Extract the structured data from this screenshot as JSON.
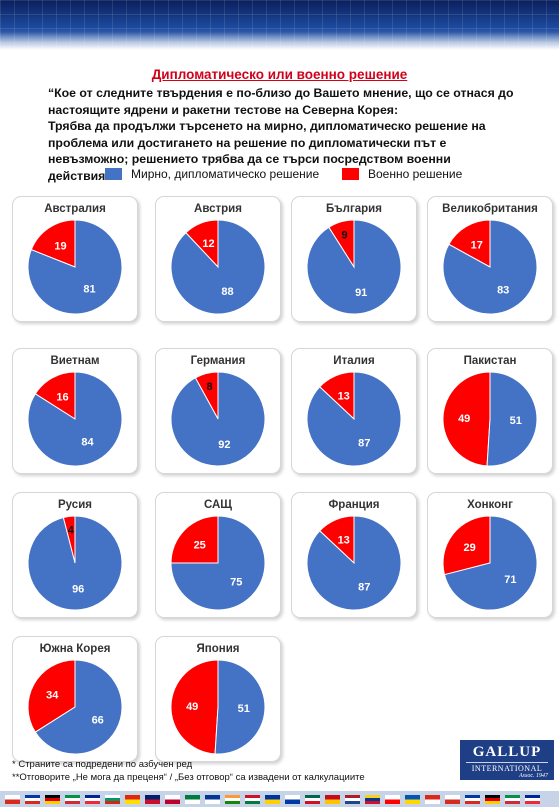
{
  "title": "Дипломатическо или военно решение",
  "question": [
    "“Кое от следните твърдения е по-близо до Вашето мнение, що се отнася до настоящите ядрени и ракетни тестове на Северна Корея:",
    "Трябва да продължи търсенето на мирно, дипломатическо решение на проблема или достигането на решение по дипломатически път е невъзможно; решението трябва да се търси посредством военни действия?”"
  ],
  "legend": [
    {
      "label": "Мирно, дипломатическо решение",
      "color": "#4472c4"
    },
    {
      "label": "Военно решение",
      "color": "#ff0000"
    }
  ],
  "chart_data": {
    "type": "pie",
    "series_names": [
      "Мирно, дипломатическо решение",
      "Военно решение"
    ],
    "colors": [
      "#4472c4",
      "#ff0000"
    ],
    "pies": [
      {
        "country": "Австралия",
        "values": [
          81,
          19
        ]
      },
      {
        "country": "Австрия",
        "values": [
          88,
          12
        ]
      },
      {
        "country": "България",
        "values": [
          91,
          9
        ]
      },
      {
        "country": "Великобритания",
        "values": [
          83,
          17
        ]
      },
      {
        "country": "Виетнам",
        "values": [
          84,
          16
        ]
      },
      {
        "country": "Германия",
        "values": [
          92,
          8
        ]
      },
      {
        "country": "Италия",
        "values": [
          87,
          13
        ]
      },
      {
        "country": "Пакистан",
        "values": [
          51,
          49
        ]
      },
      {
        "country": "Русия",
        "values": [
          96,
          4
        ]
      },
      {
        "country": "САЩ",
        "values": [
          75,
          25
        ]
      },
      {
        "country": "Франция",
        "values": [
          87,
          13
        ]
      },
      {
        "country": "Хонконг",
        "values": [
          71,
          29
        ]
      },
      {
        "country": "Южна Корея",
        "values": [
          66,
          34
        ]
      },
      {
        "country": "Япония",
        "values": [
          51,
          49
        ]
      }
    ]
  },
  "footnotes": [
    "*   Страните са подредени  по азбучен ред",
    "**Отговорите „Не мога да преценя“ / „Без отговор“ са извадени от калкулациите"
  ],
  "logo": {
    "brand": "GALLUP",
    "sub": "INTERNATIONAL",
    "since": "Assoc. 1947"
  }
}
